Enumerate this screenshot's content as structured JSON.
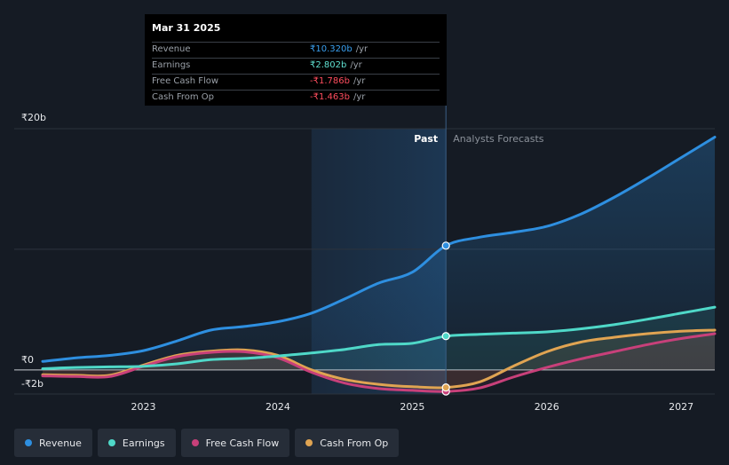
{
  "tooltip": {
    "date": "Mar 31 2025",
    "rows": [
      {
        "label": "Revenue",
        "value": "₹10.320b",
        "unit": "/yr",
        "color": "#3aa0f0"
      },
      {
        "label": "Earnings",
        "value": "₹2.802b",
        "unit": "/yr",
        "color": "#5fe0d0"
      },
      {
        "label": "Free Cash Flow",
        "value": "-₹1.786b",
        "unit": "/yr",
        "color": "#ff4d5e"
      },
      {
        "label": "Cash From Op",
        "value": "-₹1.463b",
        "unit": "/yr",
        "color": "#ff4d5e"
      }
    ]
  },
  "legend": [
    {
      "label": "Revenue",
      "color": "#2e8fe0"
    },
    {
      "label": "Earnings",
      "color": "#4fd8c8"
    },
    {
      "label": "Free Cash Flow",
      "color": "#c8407a"
    },
    {
      "label": "Cash From Op",
      "color": "#e0a452"
    }
  ],
  "chart_data": {
    "type": "line",
    "title": "",
    "xlabel": "",
    "ylabel": "",
    "xlim": [
      2022.25,
      2027.25
    ],
    "ylim": [
      -2,
      20
    ],
    "y_ticks": [
      {
        "value": 20,
        "label": "₹20b"
      },
      {
        "value": 0,
        "label": "₹0"
      },
      {
        "value": -2,
        "label": "-₹2b"
      }
    ],
    "x_ticks": [
      {
        "value": 2023,
        "label": "2023"
      },
      {
        "value": 2024,
        "label": "2024"
      },
      {
        "value": 2025,
        "label": "2025"
      },
      {
        "value": 2026,
        "label": "2026"
      },
      {
        "value": 2027,
        "label": "2027"
      }
    ],
    "past_start": 2024.25,
    "divider": 2025.25,
    "past_label": "Past",
    "forecast_label": "Analysts Forecasts",
    "series": [
      {
        "name": "Revenue",
        "color": "#2e8fe0",
        "points": [
          [
            2022.25,
            0.7
          ],
          [
            2022.5,
            1.0
          ],
          [
            2022.75,
            1.2
          ],
          [
            2023.0,
            1.6
          ],
          [
            2023.25,
            2.4
          ],
          [
            2023.5,
            3.3
          ],
          [
            2023.75,
            3.6
          ],
          [
            2024.0,
            4.0
          ],
          [
            2024.25,
            4.7
          ],
          [
            2024.5,
            5.9
          ],
          [
            2024.75,
            7.2
          ],
          [
            2025.0,
            8.1
          ],
          [
            2025.25,
            10.3
          ],
          [
            2025.5,
            11.0
          ],
          [
            2025.75,
            11.4
          ],
          [
            2026.0,
            11.9
          ],
          [
            2026.25,
            12.9
          ],
          [
            2026.5,
            14.3
          ],
          [
            2026.75,
            15.9
          ],
          [
            2027.0,
            17.6
          ],
          [
            2027.25,
            19.3
          ]
        ],
        "markers": [
          [
            2025.25,
            10.3
          ]
        ]
      },
      {
        "name": "Earnings",
        "color": "#4fd8c8",
        "points": [
          [
            2022.25,
            0.1
          ],
          [
            2022.5,
            0.2
          ],
          [
            2022.75,
            0.25
          ],
          [
            2023.0,
            0.3
          ],
          [
            2023.25,
            0.5
          ],
          [
            2023.5,
            0.85
          ],
          [
            2023.75,
            0.95
          ],
          [
            2024.0,
            1.15
          ],
          [
            2024.25,
            1.4
          ],
          [
            2024.5,
            1.7
          ],
          [
            2024.75,
            2.1
          ],
          [
            2025.0,
            2.2
          ],
          [
            2025.25,
            2.8
          ],
          [
            2025.5,
            2.95
          ],
          [
            2025.75,
            3.05
          ],
          [
            2026.0,
            3.15
          ],
          [
            2026.25,
            3.4
          ],
          [
            2026.5,
            3.75
          ],
          [
            2026.75,
            4.2
          ],
          [
            2027.0,
            4.7
          ],
          [
            2027.25,
            5.2
          ]
        ],
        "markers": [
          [
            2025.25,
            2.8
          ]
        ]
      },
      {
        "name": "Free Cash Flow",
        "color": "#c8407a",
        "points": [
          [
            2022.25,
            -0.5
          ],
          [
            2022.5,
            -0.55
          ],
          [
            2022.75,
            -0.55
          ],
          [
            2023.0,
            0.3
          ],
          [
            2023.25,
            1.1
          ],
          [
            2023.5,
            1.45
          ],
          [
            2023.75,
            1.5
          ],
          [
            2024.0,
            1.0
          ],
          [
            2024.25,
            -0.2
          ],
          [
            2024.5,
            -1.1
          ],
          [
            2024.75,
            -1.55
          ],
          [
            2025.0,
            -1.7
          ],
          [
            2025.25,
            -1.79
          ],
          [
            2025.5,
            -1.5
          ],
          [
            2025.75,
            -0.6
          ],
          [
            2026.0,
            0.2
          ],
          [
            2026.25,
            0.9
          ],
          [
            2026.5,
            1.5
          ],
          [
            2026.75,
            2.1
          ],
          [
            2027.0,
            2.6
          ],
          [
            2027.25,
            3.0
          ]
        ],
        "markers": [
          [
            2025.25,
            -1.79
          ]
        ]
      },
      {
        "name": "Cash From Op",
        "color": "#e0a452",
        "points": [
          [
            2022.25,
            -0.4
          ],
          [
            2022.5,
            -0.45
          ],
          [
            2022.75,
            -0.45
          ],
          [
            2023.0,
            0.4
          ],
          [
            2023.25,
            1.2
          ],
          [
            2023.5,
            1.55
          ],
          [
            2023.75,
            1.65
          ],
          [
            2024.0,
            1.2
          ],
          [
            2024.25,
            0.0
          ],
          [
            2024.5,
            -0.8
          ],
          [
            2024.75,
            -1.2
          ],
          [
            2025.0,
            -1.4
          ],
          [
            2025.25,
            -1.46
          ],
          [
            2025.5,
            -1.0
          ],
          [
            2025.75,
            0.3
          ],
          [
            2026.0,
            1.5
          ],
          [
            2026.25,
            2.3
          ],
          [
            2026.5,
            2.7
          ],
          [
            2026.75,
            3.0
          ],
          [
            2027.0,
            3.2
          ],
          [
            2027.25,
            3.3
          ]
        ],
        "markers": [
          [
            2025.25,
            -1.46
          ]
        ]
      }
    ]
  }
}
